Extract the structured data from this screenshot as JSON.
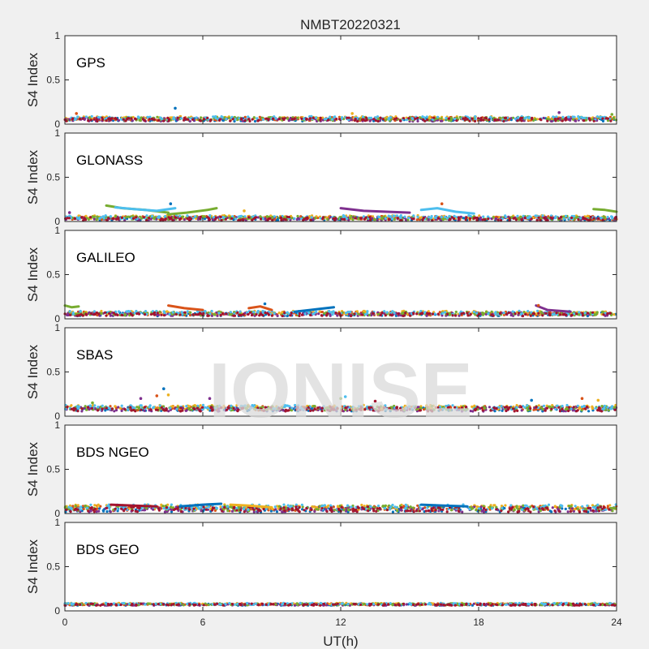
{
  "figure": {
    "title": "NMBT20220321",
    "watermark": "IONISE"
  },
  "colors": {
    "background": "#f0f0f0",
    "axes_face": "#ffffff",
    "axes_edge": "#262626",
    "series": [
      "#0072BD",
      "#D95319",
      "#EDB120",
      "#7E2F8E",
      "#77AC30",
      "#4DBEEE",
      "#A2142F"
    ]
  },
  "chart_data": [
    {
      "type": "scatter",
      "label": "GPS",
      "ylabel": "S4 Index",
      "xlabel": "",
      "xlim": [
        0,
        24
      ],
      "ylim": [
        0,
        1
      ],
      "yticks": [
        "0",
        "0.5",
        "1"
      ],
      "xticks": [],
      "grid": false,
      "baseline": 0.06,
      "spread": 0.02,
      "spikes": [
        [
          4.8,
          0.18
        ],
        [
          0.5,
          0.12
        ],
        [
          12.5,
          0.12
        ],
        [
          21.5,
          0.13
        ],
        [
          23.8,
          0.11
        ]
      ]
    },
    {
      "type": "scatter",
      "label": "GLONASS",
      "ylabel": "S4 Index",
      "xlabel": "",
      "xlim": [
        0,
        24
      ],
      "ylim": [
        0,
        1
      ],
      "yticks": [
        "0",
        "0.5",
        "1"
      ],
      "xticks": [],
      "grid": false,
      "baseline": 0.04,
      "spread": 0.02,
      "tracks": [
        {
          "x": [
            1.8,
            2.5,
            3.5,
            4.5
          ],
          "y": [
            0.18,
            0.15,
            0.13,
            0.1
          ],
          "color": 4
        },
        {
          "x": [
            2.2,
            3.0,
            4.0,
            4.8
          ],
          "y": [
            0.16,
            0.14,
            0.12,
            0.15
          ],
          "color": 5
        },
        {
          "x": [
            4.5,
            5.3,
            6.2,
            6.6
          ],
          "y": [
            0.08,
            0.1,
            0.13,
            0.15
          ],
          "color": 4
        },
        {
          "x": [
            12.0,
            13.0,
            14.0,
            15.0
          ],
          "y": [
            0.15,
            0.12,
            0.11,
            0.1
          ],
          "color": 3
        },
        {
          "x": [
            15.5,
            16.2,
            17.0,
            17.8
          ],
          "y": [
            0.13,
            0.15,
            0.11,
            0.09
          ],
          "color": 5
        },
        {
          "x": [
            23.0,
            23.5,
            24.0
          ],
          "y": [
            0.14,
            0.13,
            0.11
          ],
          "color": 4
        }
      ],
      "spikes": [
        [
          4.6,
          0.2
        ],
        [
          16.4,
          0.2
        ],
        [
          7.8,
          0.12
        ],
        [
          0.2,
          0.1
        ]
      ]
    },
    {
      "type": "scatter",
      "label": "GALILEO",
      "ylabel": "S4 Index",
      "xlabel": "",
      "xlim": [
        0,
        24
      ],
      "ylim": [
        0,
        1
      ],
      "yticks": [
        "0",
        "0.5",
        "1"
      ],
      "xticks": [],
      "grid": false,
      "baseline": 0.06,
      "spread": 0.02,
      "tracks": [
        {
          "x": [
            0.0,
            0.3,
            0.6
          ],
          "y": [
            0.15,
            0.13,
            0.14
          ],
          "color": 4
        },
        {
          "x": [
            4.5,
            5.2,
            6.0
          ],
          "y": [
            0.15,
            0.12,
            0.1
          ],
          "color": 1
        },
        {
          "x": [
            8.0,
            8.5,
            9.0
          ],
          "y": [
            0.12,
            0.14,
            0.1
          ],
          "color": 1
        },
        {
          "x": [
            10.0,
            11.0,
            11.7
          ],
          "y": [
            0.08,
            0.11,
            0.13
          ],
          "color": 0
        },
        {
          "x": [
            20.5,
            21.0,
            22.0
          ],
          "y": [
            0.15,
            0.1,
            0.08
          ],
          "color": 3
        }
      ],
      "spikes": [
        [
          8.7,
          0.17
        ],
        [
          20.6,
          0.15
        ]
      ]
    },
    {
      "type": "scatter",
      "label": "SBAS",
      "ylabel": "S4 Index",
      "xlabel": "",
      "xlim": [
        0,
        24
      ],
      "ylim": [
        0,
        1
      ],
      "yticks": [
        "0",
        "0.5",
        "1"
      ],
      "xticks": [],
      "grid": false,
      "baseline": 0.09,
      "spread": 0.025,
      "spikes": [
        [
          4.3,
          0.31
        ],
        [
          4.0,
          0.23
        ],
        [
          4.5,
          0.24
        ],
        [
          6.3,
          0.2
        ],
        [
          12.0,
          0.2
        ],
        [
          12.2,
          0.22
        ],
        [
          13.5,
          0.17
        ],
        [
          20.3,
          0.18
        ],
        [
          22.5,
          0.2
        ],
        [
          23.2,
          0.18
        ],
        [
          3.3,
          0.2
        ],
        [
          1.2,
          0.15
        ]
      ]
    },
    {
      "type": "scatter",
      "label": "BDS NGEO",
      "ylabel": "S4 Index",
      "xlabel": "",
      "xlim": [
        0,
        24
      ],
      "ylim": [
        0,
        1
      ],
      "yticks": [
        "0",
        "0.5",
        "1"
      ],
      "xticks": [],
      "grid": false,
      "baseline": 0.06,
      "spread": 0.03,
      "tracks": [
        {
          "x": [
            2.0,
            3.0,
            4.0
          ],
          "y": [
            0.1,
            0.09,
            0.08
          ],
          "color": 6
        },
        {
          "x": [
            5.0,
            6.0,
            6.8
          ],
          "y": [
            0.08,
            0.1,
            0.11
          ],
          "color": 0
        },
        {
          "x": [
            7.2,
            8.0,
            9.0
          ],
          "y": [
            0.1,
            0.09,
            0.07
          ],
          "color": 2
        },
        {
          "x": [
            15.5,
            16.5,
            17.5
          ],
          "y": [
            0.1,
            0.09,
            0.08
          ],
          "color": 0
        }
      ],
      "spikes": []
    },
    {
      "type": "scatter",
      "label": "BDS GEO",
      "ylabel": "S4 Index",
      "xlabel": "UT(h)",
      "xlim": [
        0,
        24
      ],
      "ylim": [
        0,
        1
      ],
      "yticks": [
        "0",
        "0.5",
        "1"
      ],
      "xticks": [
        "0",
        "6",
        "12",
        "18",
        "24"
      ],
      "grid": false,
      "baseline": 0.075,
      "spread": 0.01,
      "spikes": []
    }
  ]
}
